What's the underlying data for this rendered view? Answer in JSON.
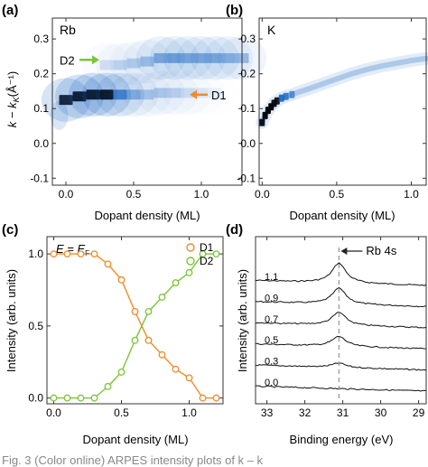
{
  "figure": {
    "caption_fragment": "Fig. 3   (Color online) ARPES intensity plots of k – k",
    "colors": {
      "density": "#1060c0",
      "d1": "#f08c28",
      "d2": "#7cc43a",
      "text": "#222222",
      "dashed": "#9a9a9a"
    }
  },
  "chart_data": [
    {
      "panel": "(a)",
      "type": "heatmap",
      "inset_label": "Rb",
      "xlabel": "Dopant density (ML)",
      "ylabel": "k − k",
      "ylabel_subscript": "K",
      "ylabel_unit": "(Å⁻¹)",
      "xlim": [
        -0.1,
        1.3
      ],
      "ylim": [
        -0.12,
        0.36
      ],
      "xticks": [
        "0.0",
        "0.5",
        "1.0"
      ],
      "yticks": [
        "-0.1",
        "0.0",
        "0.1",
        "0.2",
        "0.3"
      ],
      "annotations": [
        {
          "text": "D2",
          "color": "#7cc43a",
          "at_y": 0.24
        },
        {
          "text": "D1",
          "color": "#f08c28",
          "at_y": 0.14
        }
      ],
      "branches": [
        {
          "name": "D1",
          "x": [
            0.0,
            0.1,
            0.2,
            0.3,
            0.4,
            0.5,
            0.6,
            0.7,
            0.8,
            0.9,
            1.0,
            1.1,
            1.2
          ],
          "y": [
            0.125,
            0.135,
            0.14,
            0.14,
            0.14,
            0.14,
            0.14,
            0.145,
            0.145,
            0.145,
            0.145,
            0.145,
            0.145
          ],
          "intensity": [
            0.95,
            1.0,
            1.0,
            1.0,
            0.7,
            0.4,
            0.25,
            0.25,
            0.2,
            0.12,
            0.08,
            0.03,
            0.0
          ]
        },
        {
          "name": "D2",
          "x": [
            0.3,
            0.4,
            0.5,
            0.6,
            0.7,
            0.8,
            0.9,
            1.0,
            1.1,
            1.2,
            1.3
          ],
          "y": [
            0.225,
            0.225,
            0.23,
            0.235,
            0.245,
            0.245,
            0.245,
            0.245,
            0.245,
            0.245,
            0.245
          ],
          "intensity": [
            0.12,
            0.18,
            0.22,
            0.3,
            0.45,
            0.5,
            0.45,
            0.45,
            0.45,
            0.4,
            0.35
          ]
        }
      ]
    },
    {
      "panel": "(b)",
      "type": "heatmap",
      "inset_label": "K",
      "xlabel": "Dopant density (ML)",
      "xlim": [
        -0.02,
        1.1
      ],
      "ylim": [
        -0.12,
        0.36
      ],
      "xticks": [
        "0.0",
        "0.5",
        "1.0"
      ],
      "yticks": [
        "-0.1",
        "0.0",
        "0.1",
        "0.2",
        "0.3"
      ],
      "band": {
        "x": [
          0.0,
          0.02,
          0.04,
          0.06,
          0.08,
          0.1,
          0.13,
          0.16,
          0.2,
          0.25,
          0.3,
          0.4,
          0.5,
          0.6,
          0.7,
          0.8,
          0.9,
          1.0,
          1.1
        ],
        "y": [
          0.06,
          0.08,
          0.095,
          0.105,
          0.115,
          0.122,
          0.13,
          0.135,
          0.14,
          0.148,
          0.155,
          0.17,
          0.185,
          0.2,
          0.212,
          0.222,
          0.23,
          0.238,
          0.244
        ],
        "intensity": [
          0.95,
          1.0,
          1.0,
          1.0,
          0.95,
          0.9,
          0.85,
          0.75,
          0.6,
          0.45,
          0.38,
          0.32,
          0.3,
          0.3,
          0.3,
          0.3,
          0.3,
          0.3,
          0.28
        ]
      }
    },
    {
      "panel": "(c)",
      "type": "line",
      "title_left": "E = E",
      "title_subscript": "F",
      "xlabel": "Dopant density (ML)",
      "ylabel": "Intensity (arb. units)",
      "xlim": [
        -0.05,
        1.25
      ],
      "ylim": [
        -0.04,
        1.12
      ],
      "xticks": [
        "0.0",
        "0.5",
        "1.0"
      ],
      "yticks": [
        "0.0",
        "0.5",
        "1.0"
      ],
      "legend_position": "top-right",
      "x": [
        0.0,
        0.1,
        0.2,
        0.3,
        0.4,
        0.5,
        0.6,
        0.7,
        0.8,
        0.9,
        1.0,
        1.1,
        1.2
      ],
      "series": [
        {
          "name": "D1",
          "color": "#f08c28",
          "values": [
            1.0,
            1.0,
            1.0,
            1.0,
            0.93,
            0.82,
            0.6,
            0.4,
            0.3,
            0.2,
            0.14,
            0.0,
            0.0
          ]
        },
        {
          "name": "D2",
          "color": "#7cc43a",
          "values": [
            0.0,
            0.0,
            0.0,
            0.0,
            0.08,
            0.18,
            0.4,
            0.6,
            0.7,
            0.8,
            0.87,
            1.0,
            1.0
          ]
        }
      ]
    },
    {
      "panel": "(d)",
      "type": "line",
      "xlabel": "Binding energy (eV)",
      "ylabel": "Intensity (arb. units)",
      "xlim": [
        33.3,
        28.8
      ],
      "xticks": [
        "33",
        "32",
        "31",
        "30",
        "29"
      ],
      "peak_label": "Rb 4s",
      "peak_energy": 31.1,
      "series": [
        {
          "name": "1.1",
          "peak_height": 1.0
        },
        {
          "name": "0.9",
          "peak_height": 0.8
        },
        {
          "name": "0.7",
          "peak_height": 0.65
        },
        {
          "name": "0.5",
          "peak_height": 0.5
        },
        {
          "name": "0.3",
          "peak_height": 0.22
        },
        {
          "name": "0.0",
          "peak_height": 0.0
        }
      ]
    }
  ]
}
